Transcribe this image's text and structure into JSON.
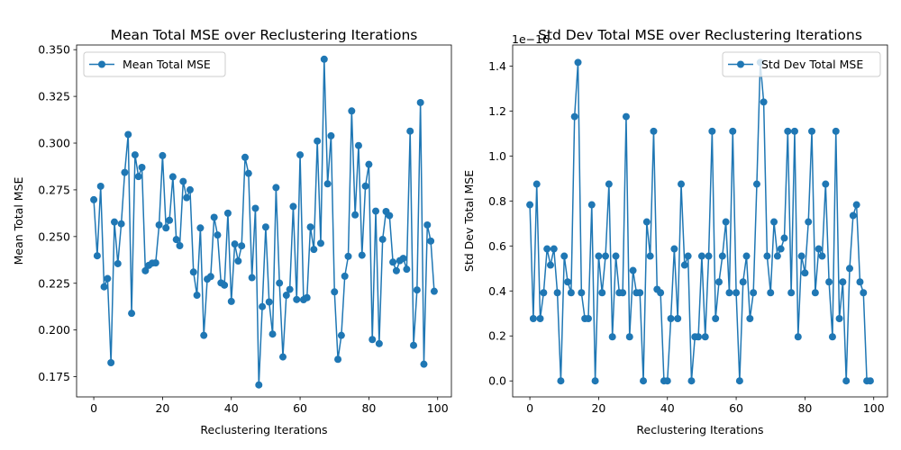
{
  "chart_data": [
    {
      "type": "line",
      "title": "Mean Total MSE over Reclustering Iterations",
      "xlabel": "Reclustering Iterations",
      "ylabel": "Mean Total MSE",
      "xlim": [
        -5,
        104
      ],
      "ylim": [
        0.1642,
        0.3525
      ],
      "xticks": [
        0,
        20,
        40,
        60,
        80,
        100
      ],
      "xtick_labels": [
        "0",
        "20",
        "40",
        "60",
        "80",
        "100"
      ],
      "yticks": [
        0.175,
        0.2,
        0.225,
        0.25,
        0.275,
        0.3,
        0.325,
        0.35
      ],
      "ytick_labels": [
        "0.175",
        "0.200",
        "0.225",
        "0.250",
        "0.275",
        "0.300",
        "0.325",
        "0.350"
      ],
      "offset_label": "",
      "legend_position": "upper left",
      "grid": false,
      "color": "#1f77b4",
      "series": [
        {
          "name": "Mean Total MSE",
          "x": [
            0,
            1,
            2,
            3,
            4,
            5,
            6,
            7,
            8,
            9,
            10,
            11,
            12,
            13,
            14,
            15,
            16,
            17,
            18,
            19,
            20,
            21,
            22,
            23,
            24,
            25,
            26,
            27,
            28,
            29,
            30,
            31,
            32,
            33,
            34,
            35,
            36,
            37,
            38,
            39,
            40,
            41,
            42,
            43,
            44,
            45,
            46,
            47,
            48,
            49,
            50,
            51,
            52,
            53,
            54,
            55,
            56,
            57,
            58,
            59,
            60,
            61,
            62,
            63,
            64,
            65,
            66,
            67,
            68,
            69,
            70,
            71,
            72,
            73,
            74,
            75,
            76,
            77,
            78,
            79,
            80,
            81,
            82,
            83,
            84,
            85,
            86,
            87,
            88,
            89,
            90,
            91,
            92,
            93,
            94,
            95,
            96,
            97,
            98,
            99
          ],
          "values": [
            0.2697,
            0.2397,
            0.2769,
            0.2231,
            0.2275,
            0.1825,
            0.2578,
            0.2355,
            0.2568,
            0.2843,
            0.3046,
            0.2089,
            0.2937,
            0.2821,
            0.287,
            0.2317,
            0.2346,
            0.2358,
            0.2359,
            0.2562,
            0.2933,
            0.2546,
            0.2587,
            0.282,
            0.2484,
            0.2451,
            0.2795,
            0.2708,
            0.275,
            0.231,
            0.2186,
            0.2546,
            0.1971,
            0.2272,
            0.2286,
            0.2603,
            0.2508,
            0.2252,
            0.224,
            0.2625,
            0.2153,
            0.246,
            0.2369,
            0.245,
            0.2924,
            0.2838,
            0.228,
            0.2651,
            0.1706,
            0.2125,
            0.2551,
            0.215,
            0.1978,
            0.2762,
            0.2251,
            0.1856,
            0.2186,
            0.2217,
            0.2661,
            0.2163,
            0.2937,
            0.2162,
            0.2173,
            0.2551,
            0.2431,
            0.3011,
            0.2464,
            0.3449,
            0.2782,
            0.3039,
            0.2204,
            0.1843,
            0.1971,
            0.2288,
            0.2394,
            0.3172,
            0.2616,
            0.2987,
            0.24,
            0.277,
            0.2886,
            0.1949,
            0.2636,
            0.1927,
            0.2485,
            0.2634,
            0.2612,
            0.2363,
            0.2317,
            0.2371,
            0.2383,
            0.2325,
            0.3064,
            0.1918,
            0.2214,
            0.3217,
            0.1817,
            0.2562,
            0.2476,
            0.2207
          ]
        }
      ]
    },
    {
      "type": "line",
      "title": "Std Dev Total MSE over Reclustering Iterations",
      "xlabel": "Reclustering Iterations",
      "ylabel": "Std Dev Total MSE",
      "xlim": [
        -5,
        104
      ],
      "ylim": [
        -0.0711,
        1.4934
      ],
      "xticks": [
        0,
        20,
        40,
        60,
        80,
        100
      ],
      "xtick_labels": [
        "0",
        "20",
        "40",
        "60",
        "80",
        "100"
      ],
      "yticks": [
        0,
        0.2,
        0.4,
        0.6,
        0.8,
        1.0,
        1.2,
        1.4
      ],
      "ytick_labels": [
        "0.0",
        "0.2",
        "0.4",
        "0.6",
        "0.8",
        "1.0",
        "1.2",
        "1.4"
      ],
      "offset_label": "1e−16",
      "legend_position": "upper right",
      "grid": false,
      "color": "#1f77b4",
      "series": [
        {
          "name": "Std Dev Total MSE",
          "x": [
            0,
            1,
            2,
            3,
            4,
            5,
            6,
            7,
            8,
            9,
            10,
            11,
            12,
            13,
            14,
            15,
            16,
            17,
            18,
            19,
            20,
            21,
            22,
            23,
            24,
            25,
            26,
            27,
            28,
            29,
            30,
            31,
            32,
            33,
            34,
            35,
            36,
            37,
            38,
            39,
            40,
            41,
            42,
            43,
            44,
            45,
            46,
            47,
            48,
            49,
            50,
            51,
            52,
            53,
            54,
            55,
            56,
            57,
            58,
            59,
            60,
            61,
            62,
            63,
            64,
            65,
            66,
            67,
            68,
            69,
            70,
            71,
            72,
            73,
            74,
            75,
            76,
            77,
            78,
            79,
            80,
            81,
            82,
            83,
            84,
            85,
            86,
            87,
            88,
            89,
            90,
            91,
            92,
            93,
            94,
            95,
            96,
            97,
            98,
            99
          ],
          "values": [
            0.783,
            0.277,
            0.875,
            0.277,
            0.392,
            0.587,
            0.515,
            0.587,
            0.392,
            0.0,
            0.555,
            0.44,
            0.392,
            1.175,
            1.416,
            0.392,
            0.277,
            0.277,
            0.783,
            0.0,
            0.555,
            0.392,
            0.555,
            0.875,
            0.196,
            0.555,
            0.392,
            0.392,
            1.175,
            0.196,
            0.491,
            0.392,
            0.392,
            0.0,
            0.707,
            0.555,
            1.11,
            0.407,
            0.392,
            0.0,
            0.0,
            0.277,
            0.587,
            0.277,
            0.875,
            0.515,
            0.555,
            0.0,
            0.196,
            0.196,
            0.555,
            0.196,
            0.555,
            1.11,
            0.277,
            0.44,
            0.555,
            0.707,
            0.392,
            1.11,
            0.392,
            0.0,
            0.44,
            0.555,
            0.277,
            0.392,
            0.875,
            1.416,
            1.24,
            0.555,
            0.392,
            0.707,
            0.555,
            0.587,
            0.635,
            1.11,
            0.392,
            1.11,
            0.196,
            0.555,
            0.48,
            0.707,
            1.11,
            0.392,
            0.587,
            0.555,
            0.875,
            0.44,
            0.196,
            1.11,
            0.277,
            0.44,
            0.0,
            0.5,
            0.735,
            0.783,
            0.44,
            0.392,
            0.0,
            0.0
          ]
        }
      ]
    }
  ]
}
